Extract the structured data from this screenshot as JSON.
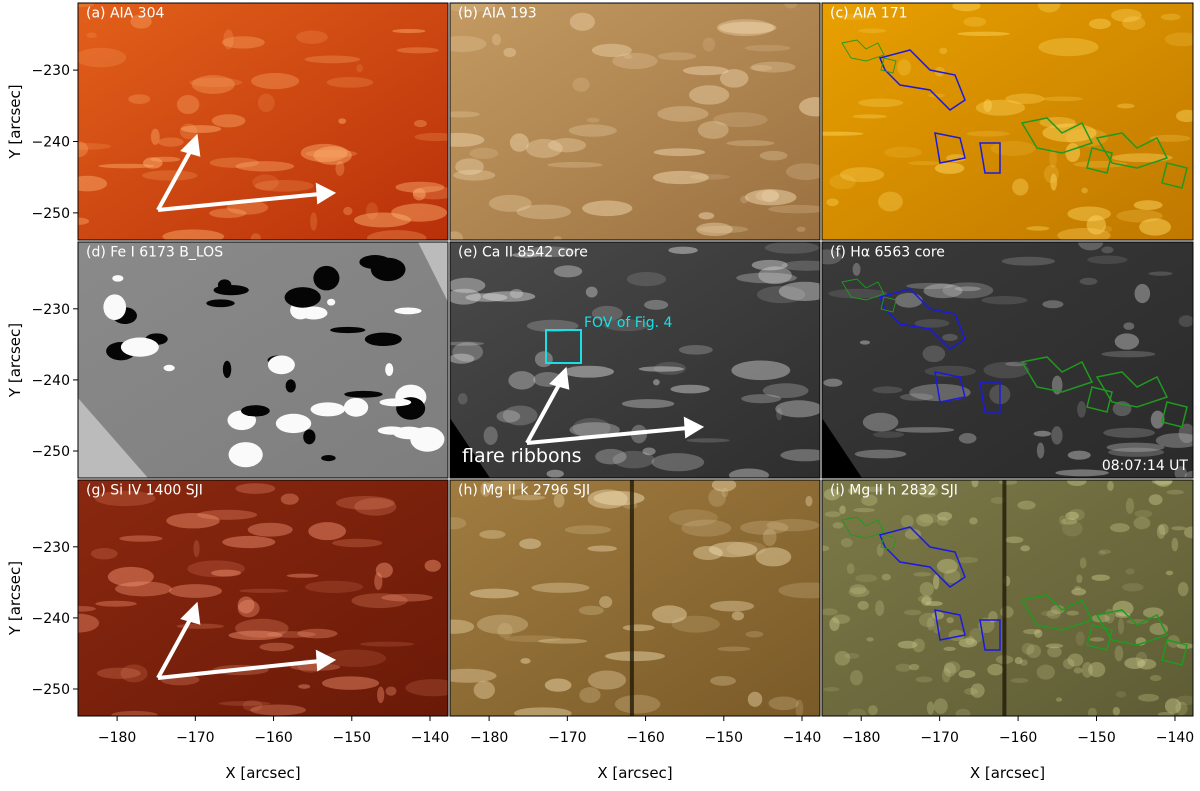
{
  "panels": [
    {
      "label": "(a) AIA 304"
    },
    {
      "label": "(b) AIA 193"
    },
    {
      "label": "(c) AIA 171"
    },
    {
      "label": "(d) Fe I 6173 B_LOS"
    },
    {
      "label": "(e) Ca II 8542 core"
    },
    {
      "label": "(f) Hα 6563 core"
    },
    {
      "label": "(g) Si IV 1400 SJI"
    },
    {
      "label": "(h) Mg II k 2796 SJI"
    },
    {
      "label": "(i) Mg II h 2832 SJI"
    }
  ],
  "annotations": {
    "fov": "FOV of Fig. 4",
    "ribbons": "flare ribbons",
    "time": "08:07:14 UT"
  },
  "axes": {
    "xlabel": "X [arcsec]",
    "ylabel": "Y [arcsec]",
    "xlim": [
      -185,
      -137.7
    ],
    "ylim": [
      -253.8,
      -220.6
    ],
    "xticks": [
      {
        "value": -180,
        "label": "−180"
      },
      {
        "value": -170,
        "label": "−170"
      },
      {
        "value": -160,
        "label": "−160"
      },
      {
        "value": -150,
        "label": "−150"
      },
      {
        "value": -140,
        "label": "−140"
      }
    ],
    "yticks": [
      {
        "value": -230,
        "label": "−230"
      },
      {
        "value": -240,
        "label": "−240"
      },
      {
        "value": -250,
        "label": "−250"
      }
    ]
  }
}
